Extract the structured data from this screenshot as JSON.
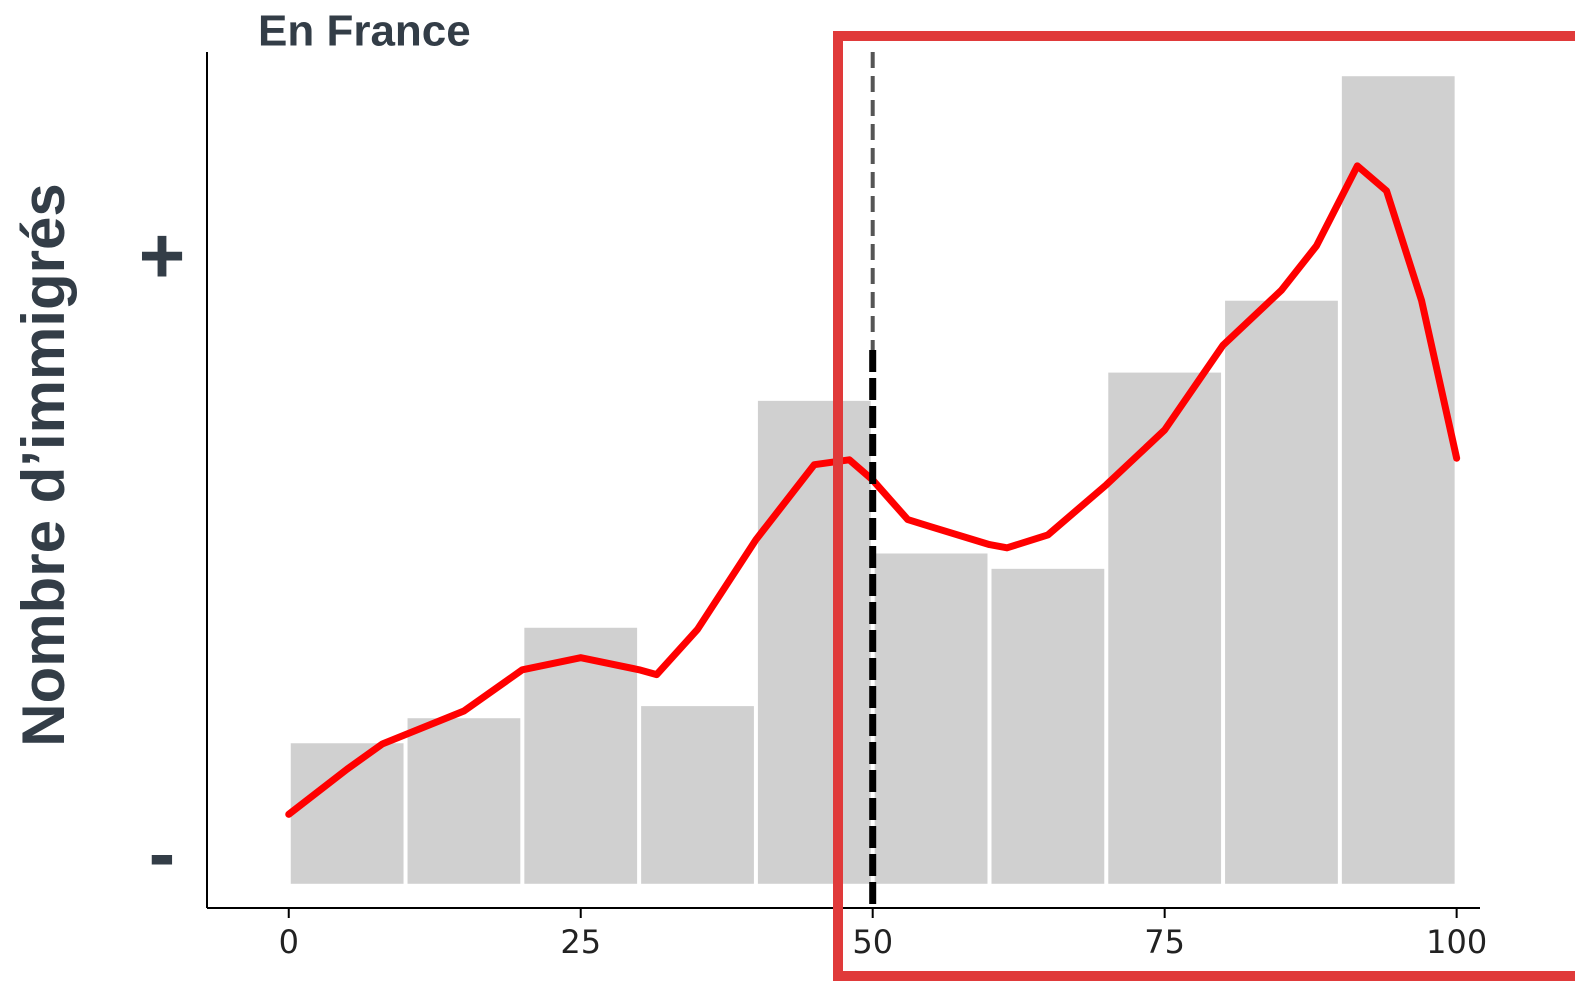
{
  "chart_data": {
    "type": "histogram",
    "title": "En France",
    "ylabel": "Nombre d’immigrés",
    "bins": [
      0,
      10,
      20,
      30,
      40,
      50,
      60,
      70,
      80,
      90,
      100
    ],
    "values": [
      17.4,
      20.5,
      31.7,
      22,
      59.8,
      40.9,
      39,
      63.3,
      72.2,
      100
    ],
    "color": "#d0d0d0",
    "density": {
      "color": "#ff0000",
      "x": [
        0,
        5,
        8,
        15,
        20,
        25,
        30,
        31.5,
        35,
        40,
        45,
        48,
        50,
        53,
        55,
        60,
        61.5,
        65,
        70,
        75,
        80,
        85,
        88,
        91.5,
        94,
        97,
        100
      ],
      "y": [
        8.6,
        14.2,
        17.3,
        21.4,
        26.5,
        28,
        26.5,
        25.9,
        31.5,
        42.6,
        51.9,
        52.5,
        50,
        45.1,
        44.2,
        42,
        41.6,
        43.2,
        49.4,
        56.2,
        66.7,
        73.5,
        79,
        88.9,
        85.8,
        72.2,
        52.7
      ]
    },
    "vline": 50,
    "xlim": [
      -7,
      102
    ],
    "xticks": [
      0,
      25,
      50,
      75,
      100
    ],
    "ylim": [
      -3,
      103
    ],
    "yticks": [
      {
        "value": 3,
        "label": "-"
      },
      {
        "value": 77,
        "label": "+"
      }
    ]
  }
}
